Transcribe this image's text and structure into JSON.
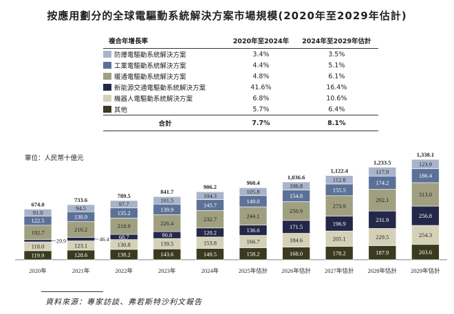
{
  "chart_data": {
    "type": "bar",
    "stacked": true,
    "title": "按應用劃分的全球電驅動系統解決方案市場規模(2020年至2029年估計)",
    "unit_label": "單位：人民幣十億元",
    "categories": [
      "2020年",
      "2021年",
      "2022年",
      "2023年",
      "2024年",
      "2025年估計",
      "2026年估計",
      "2027年估計",
      "2028年估計",
      "2029年估計"
    ],
    "series": [
      {
        "name": "其他",
        "color": "#3a3a1f",
        "values": [
          119.9,
          128.6,
          138.2,
          143.6,
          149.5,
          158.2,
          168.0,
          178.2,
          187.9,
          203.6
        ]
      },
      {
        "name": "機器人電驅動系統解決方案",
        "color": "#d4d1b8",
        "values": [
          118.0,
          123.1,
          130.8,
          139.5,
          153.8,
          166.7,
          184.6,
          205.1,
          229.5,
          254.3
        ]
      },
      {
        "name": "新能源交通電驅動系統解決方案",
        "color": "#242848",
        "values": [
          29.9,
          46.4,
          68.7,
          90.8,
          120.2,
          136.6,
          171.5,
          196.9,
          231.9,
          256.8
        ]
      },
      {
        "name": "暖通電驅動系統解決方案",
        "color": "#a0a081",
        "values": [
          192.7,
          210.2,
          218.9,
          226.4,
          232.7,
          244.1,
          250.9,
          273.9,
          292.1,
          313.0
        ]
      },
      {
        "name": "工業電驅動系統解決方案",
        "color": "#5c7197",
        "values": [
          122.5,
          130.9,
          135.2,
          139.9,
          145.7,
          149.0,
          154.8,
          155.5,
          174.2,
          186.4
        ]
      },
      {
        "name": "防爆電驅動系統解決方案",
        "color": "#a9b4cb",
        "values": [
          91.0,
          94.5,
          97.7,
          101.5,
          104.3,
          105.8,
          106.8,
          112.8,
          117.9,
          123.9
        ]
      }
    ],
    "totals": [
      "674.0",
      "733.6",
      "789.5",
      "841.7",
      "906.2",
      "960.4",
      "1,036.6",
      "1,122.4",
      "1,233.5",
      "1,338.1"
    ],
    "outside_labels": {
      "0": "29.9",
      "1": "46.4"
    }
  },
  "cagr_table": {
    "header": {
      "label": "複合年增長率",
      "col1": "2020年至2024年",
      "col2": "2024年至2029年估計"
    },
    "rows": [
      {
        "name": "防爆電驅動系統解決方案",
        "color": "#a9b4cb",
        "v1": "3.4%",
        "v2": "3.5%"
      },
      {
        "name": "工業電驅動系統解決方案",
        "color": "#5c7197",
        "v1": "4.4%",
        "v2": "5.1%"
      },
      {
        "name": "暖通電驅動系統解決方案",
        "color": "#a0a081",
        "v1": "4.8%",
        "v2": "6.1%"
      },
      {
        "name": "新能源交通電驅動系統解決方案",
        "color": "#242848",
        "v1": "41.6%",
        "v2": "16.4%"
      },
      {
        "name": "機器人電驅動系統解決方案",
        "color": "#d4d1b8",
        "v1": "6.8%",
        "v2": "10.6%"
      },
      {
        "name": "其他",
        "color": "#3a3a1f",
        "v1": "5.7%",
        "v2": "6.4%"
      }
    ],
    "total": {
      "label": "合計",
      "v1": "7.7%",
      "v2": "8.1%"
    }
  },
  "source": "資料來源：專家訪談、弗若斯特沙利文報告"
}
